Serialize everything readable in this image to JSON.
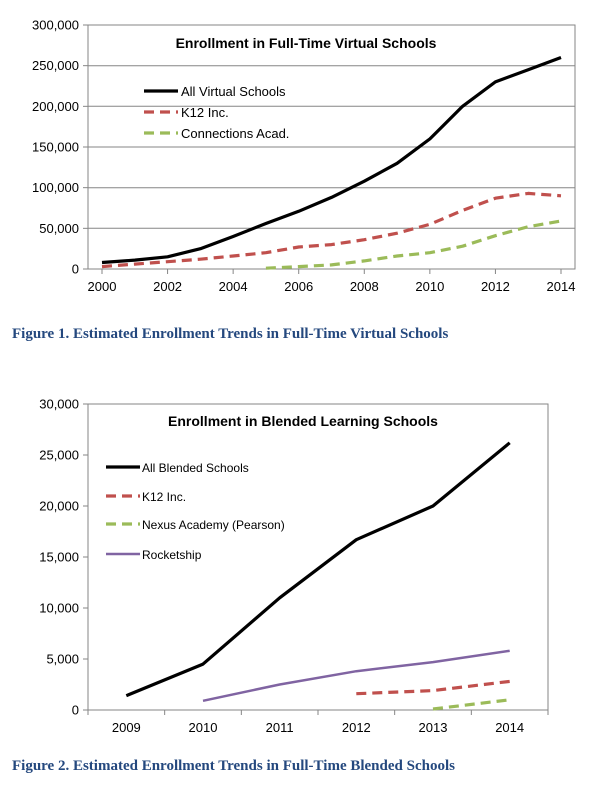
{
  "chart_data": [
    {
      "type": "line",
      "title": "Enrollment in Full-Time Virtual Schools",
      "caption": "Figure 1. Estimated Enrollment Trends in Full-Time Virtual Schools",
      "xlim": [
        2000,
        2014
      ],
      "ylim": [
        0,
        300000
      ],
      "x_ticks": [
        "2000",
        "2002",
        "2004",
        "2006",
        "2008",
        "2010",
        "2012",
        "2014"
      ],
      "y_ticks": [
        "0",
        "50,000",
        "100,000",
        "150,000",
        "200,000",
        "250,000",
        "300,000"
      ],
      "grid": true,
      "legend_position": "top-left",
      "series": [
        {
          "name": "All Virtual Schools",
          "color": "#000000",
          "style": "solid",
          "x": [
            2000,
            2001,
            2002,
            2003,
            2004,
            2005,
            2006,
            2007,
            2008,
            2009,
            2010,
            2011,
            2012,
            2013,
            2014
          ],
          "values": [
            8000,
            11000,
            15000,
            25000,
            40000,
            56000,
            71000,
            88000,
            108000,
            130000,
            160000,
            200000,
            230000,
            245000,
            260000
          ]
        },
        {
          "name": "K12 Inc.",
          "color": "#c0504d",
          "style": "dashed",
          "x": [
            2000,
            2001,
            2002,
            2003,
            2004,
            2005,
            2006,
            2007,
            2008,
            2009,
            2010,
            2011,
            2012,
            2013,
            2014
          ],
          "values": [
            3000,
            6000,
            9000,
            12000,
            16000,
            20000,
            27000,
            30000,
            36000,
            44000,
            55000,
            72000,
            87000,
            93000,
            90000
          ]
        },
        {
          "name": "Connections Acad.",
          "color": "#9bbb59",
          "style": "dashed",
          "x": [
            2005,
            2006,
            2007,
            2008,
            2009,
            2010,
            2011,
            2012,
            2013,
            2014
          ],
          "values": [
            1000,
            3000,
            5000,
            10000,
            16000,
            20000,
            28000,
            41000,
            52000,
            59000
          ]
        }
      ]
    },
    {
      "type": "line",
      "title": "Enrollment in Blended Learning Schools",
      "caption": "Figure 2. Estimated Enrollment Trends in Full-Time Blended Schools",
      "categories": [
        "2009",
        "2010",
        "2011",
        "2012",
        "2013",
        "2014"
      ],
      "ylim": [
        0,
        30000
      ],
      "y_ticks": [
        "0",
        "5,000",
        "10,000",
        "15,000",
        "20,000",
        "25,000",
        "30,000"
      ],
      "grid": false,
      "legend_position": "top-left",
      "series": [
        {
          "name": "All Blended Schools",
          "color": "#000000",
          "style": "solid",
          "x": [
            2009,
            2010,
            2011,
            2012,
            2013,
            2014
          ],
          "values": [
            1400,
            4500,
            11000,
            16700,
            20000,
            26200
          ]
        },
        {
          "name": "K12 Inc.",
          "color": "#c0504d",
          "style": "dashed",
          "x": [
            2012,
            2013,
            2014
          ],
          "values": [
            1600,
            1900,
            2800
          ]
        },
        {
          "name": "Nexus Academy (Pearson)",
          "color": "#9bbb59",
          "style": "dashed",
          "x": [
            2013,
            2014
          ],
          "values": [
            100,
            1000
          ]
        },
        {
          "name": "Rocketship",
          "color": "#8064a2",
          "style": "solid",
          "x": [
            2010,
            2011,
            2012,
            2013,
            2014
          ],
          "values": [
            900,
            2500,
            3800,
            4700,
            5800
          ]
        }
      ]
    }
  ]
}
